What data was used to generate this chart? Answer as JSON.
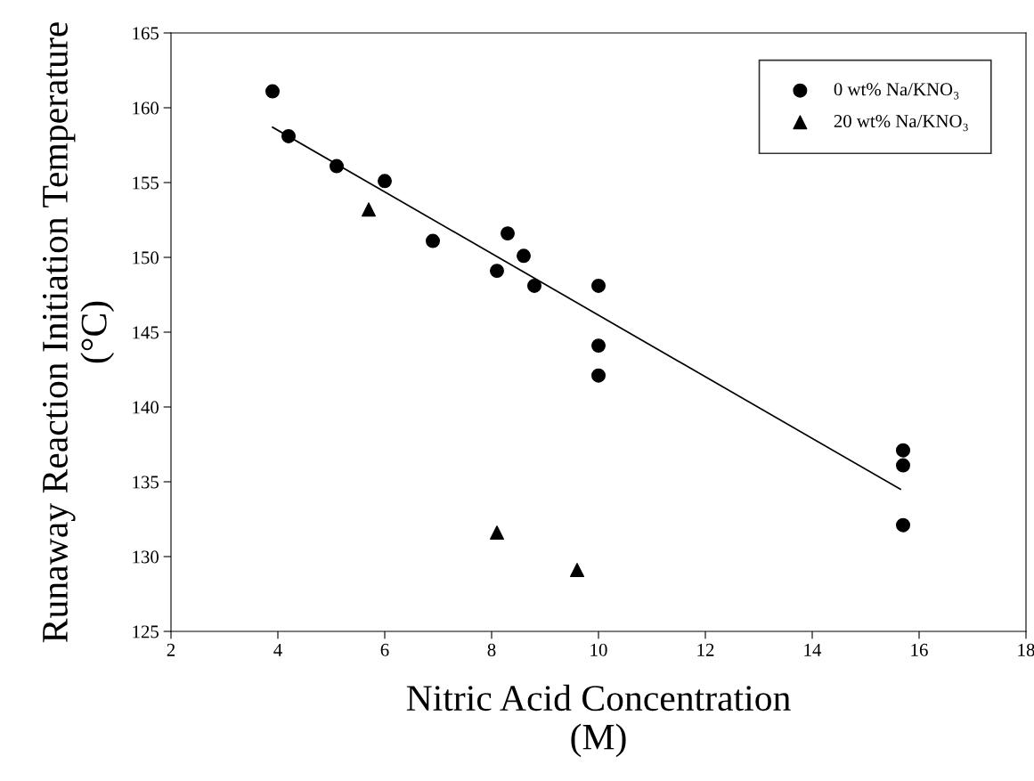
{
  "chart_data": {
    "type": "scatter",
    "xlabel": "Nitric Acid Concentration\n(M)",
    "ylabel": "Runaway Reaction Initiation Temperature\n(°C)",
    "xlim": [
      2,
      18
    ],
    "xticks": [
      2,
      4,
      6,
      8,
      10,
      12,
      14,
      16,
      18
    ],
    "ylim": [
      125,
      165
    ],
    "yticks": [
      125,
      130,
      135,
      140,
      145,
      150,
      155,
      160,
      165
    ],
    "grid": false,
    "legend": "top right",
    "series": [
      {
        "name": "0 wt% Na/KNO₃",
        "color": "#000000",
        "marker": "circle",
        "x": [
          3.9,
          4.2,
          5.1,
          6.0,
          6.9,
          8.1,
          8.3,
          8.6,
          8.8,
          10.0,
          10.0,
          10.0,
          15.7,
          15.7,
          15.7
        ],
        "values": [
          161.1,
          158.1,
          156.1,
          155.1,
          151.1,
          149.1,
          151.6,
          150.1,
          148.1,
          148.1,
          144.1,
          142.1,
          137.1,
          136.1,
          132.1
        ]
      },
      {
        "name": "20 wt% Na/KNO₃",
        "color": "#000000",
        "marker": "triangle",
        "x": [
          5.7,
          8.1,
          9.6
        ],
        "values": [
          153.2,
          131.6,
          129.1
        ]
      },
      {
        "type": "line",
        "color": "#000000",
        "marker": "none",
        "line_style": "solid",
        "x": [
          3.9,
          15.65
        ],
        "values": [
          158.7,
          134.5
        ]
      }
    ]
  }
}
